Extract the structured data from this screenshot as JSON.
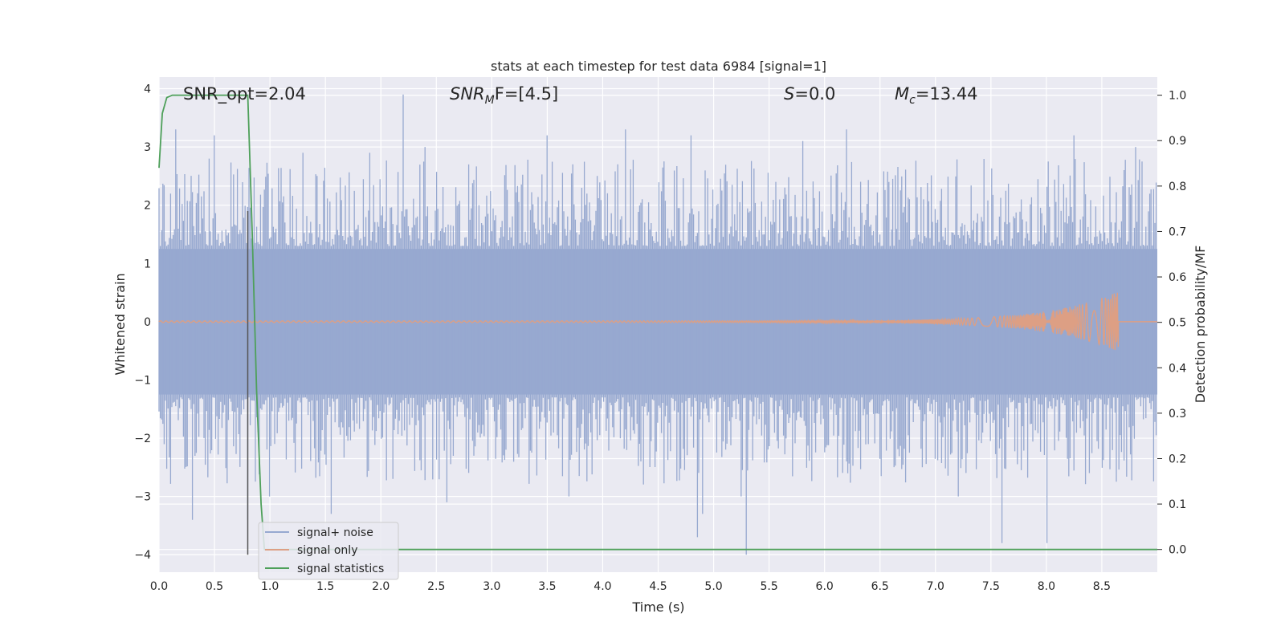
{
  "chart_data": {
    "type": "line",
    "title": "stats at each timestep for test data 6984 [signal=1]",
    "xlabel": "Time (s)",
    "ylabel": "Whitened strain",
    "y2label": "Detection probability/MF",
    "xlim": [
      0.0,
      9.0
    ],
    "ylim": [
      -4.3,
      4.2
    ],
    "y2lim": [
      -0.05,
      1.04
    ],
    "xticks": [
      "0.0",
      "0.5",
      "1.0",
      "1.5",
      "2.0",
      "2.5",
      "3.0",
      "3.5",
      "4.0",
      "4.5",
      "5.0",
      "5.5",
      "6.0",
      "6.5",
      "7.0",
      "7.5",
      "8.0",
      "8.5"
    ],
    "yticks": [
      "4",
      "3",
      "2",
      "1",
      "0",
      "−1",
      "−2",
      "−3",
      "−4"
    ],
    "y2ticks": [
      "1.0",
      "0.9",
      "0.8",
      "0.7",
      "0.6",
      "0.5",
      "0.4",
      "0.3",
      "0.2",
      "0.1",
      "0.0"
    ],
    "grid": true,
    "legend_position": "lower-left",
    "annotations": {
      "snr_opt": "SNR_opt=2.04",
      "snr_mf_main": "SNR",
      "snr_mf_sub": "M",
      "snr_mf_rest": "F=[4.5]",
      "s_main": "S",
      "s_rest": "=0.0",
      "mc_main": "M",
      "mc_sub": "c",
      "mc_rest": "=13.44"
    },
    "vertical_marker_x": 0.8,
    "series": [
      {
        "name": "signal+ noise",
        "color": "#97a9d0",
        "description_range": [
          -4.0,
          4.0
        ],
        "peaks": [
          [
            0.1,
            2.2
          ],
          [
            0.15,
            3.3
          ],
          [
            0.3,
            -3.4
          ],
          [
            0.45,
            2.8
          ],
          [
            0.5,
            3.2
          ],
          [
            0.8,
            -3.4
          ],
          [
            1.0,
            -3.0
          ],
          [
            1.3,
            2.9
          ],
          [
            1.55,
            -3.3
          ],
          [
            1.9,
            2.9
          ],
          [
            2.2,
            3.9
          ],
          [
            2.4,
            3.0
          ],
          [
            2.6,
            -3.1
          ],
          [
            3.5,
            3.2
          ],
          [
            3.7,
            -3.0
          ],
          [
            4.2,
            3.3
          ],
          [
            4.8,
            3.2
          ],
          [
            4.85,
            -3.7
          ],
          [
            4.9,
            -3.3
          ],
          [
            5.25,
            -3.0
          ],
          [
            5.3,
            -4.0
          ],
          [
            5.8,
            3.1
          ],
          [
            6.2,
            3.3
          ],
          [
            7.2,
            -3.0
          ],
          [
            7.6,
            -3.8
          ],
          [
            8.0,
            -3.8
          ],
          [
            8.25,
            3.2
          ],
          [
            8.8,
            3.0
          ]
        ]
      },
      {
        "name": "signal only",
        "color": "#dd9f84",
        "chirp_end": 8.65,
        "peak_amplitude": 0.5
      },
      {
        "name": "signal statistics",
        "color": "#4ea05a",
        "axis": "right",
        "points": [
          [
            0.0,
            0.84
          ],
          [
            0.03,
            0.96
          ],
          [
            0.07,
            0.995
          ],
          [
            0.12,
            1.0
          ],
          [
            0.78,
            1.0
          ],
          [
            0.8,
            1.0
          ],
          [
            0.84,
            0.7
          ],
          [
            0.88,
            0.35
          ],
          [
            0.92,
            0.1
          ],
          [
            0.95,
            0.0
          ],
          [
            9.0,
            0.0
          ]
        ]
      }
    ]
  }
}
